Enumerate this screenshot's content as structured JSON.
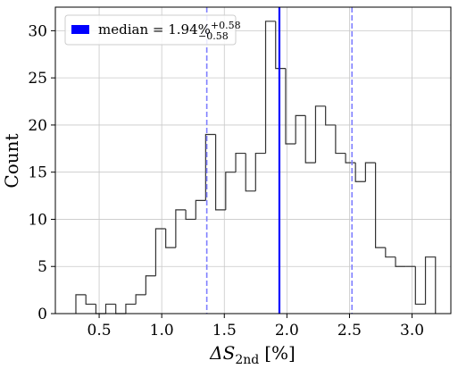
{
  "chart_data": {
    "type": "histogram",
    "xlabel": {
      "main": "ΔS",
      "sub": "2nd",
      "suffix": "[%]"
    },
    "ylabel": "Count",
    "bins": [
      0.314,
      0.394,
      0.474,
      0.553,
      0.633,
      0.713,
      0.793,
      0.873,
      0.952,
      1.032,
      1.112,
      1.192,
      1.272,
      1.351,
      1.431,
      1.511,
      1.591,
      1.671,
      1.75,
      1.83,
      1.91,
      1.99,
      2.07,
      2.149,
      2.229,
      2.309,
      2.389,
      2.469,
      2.548,
      2.628,
      2.708,
      2.788,
      2.868,
      2.947,
      3.027,
      3.107,
      3.187
    ],
    "counts": [
      2,
      1,
      0,
      1,
      0,
      1,
      2,
      4,
      9,
      7,
      11,
      10,
      12,
      19,
      11,
      15,
      17,
      13,
      17,
      31,
      26,
      18,
      21,
      16,
      22,
      20,
      17,
      16,
      14,
      16,
      7,
      6,
      5,
      5,
      1,
      6
    ],
    "color": "#333333",
    "median": {
      "value": 1.94,
      "color": "#0000ff",
      "legend": "median = 1.94%",
      "sup": "+0.58",
      "sub": "−0.58"
    },
    "bounds": {
      "values": [
        1.36,
        2.52
      ],
      "color": "#7f7fff"
    },
    "xlim": [
      0.15,
      3.31
    ],
    "ylim": [
      0,
      32.5
    ],
    "xticks": [
      0.5,
      {
        "value": 1.0,
        "label": "1.0"
      },
      1.5,
      {
        "value": 2.0,
        "label": "2.0"
      },
      2.5,
      {
        "value": 3.0,
        "label": "3.0"
      }
    ],
    "yticks": [
      0,
      5,
      10,
      15,
      20,
      25,
      30
    ],
    "grid": true
  }
}
